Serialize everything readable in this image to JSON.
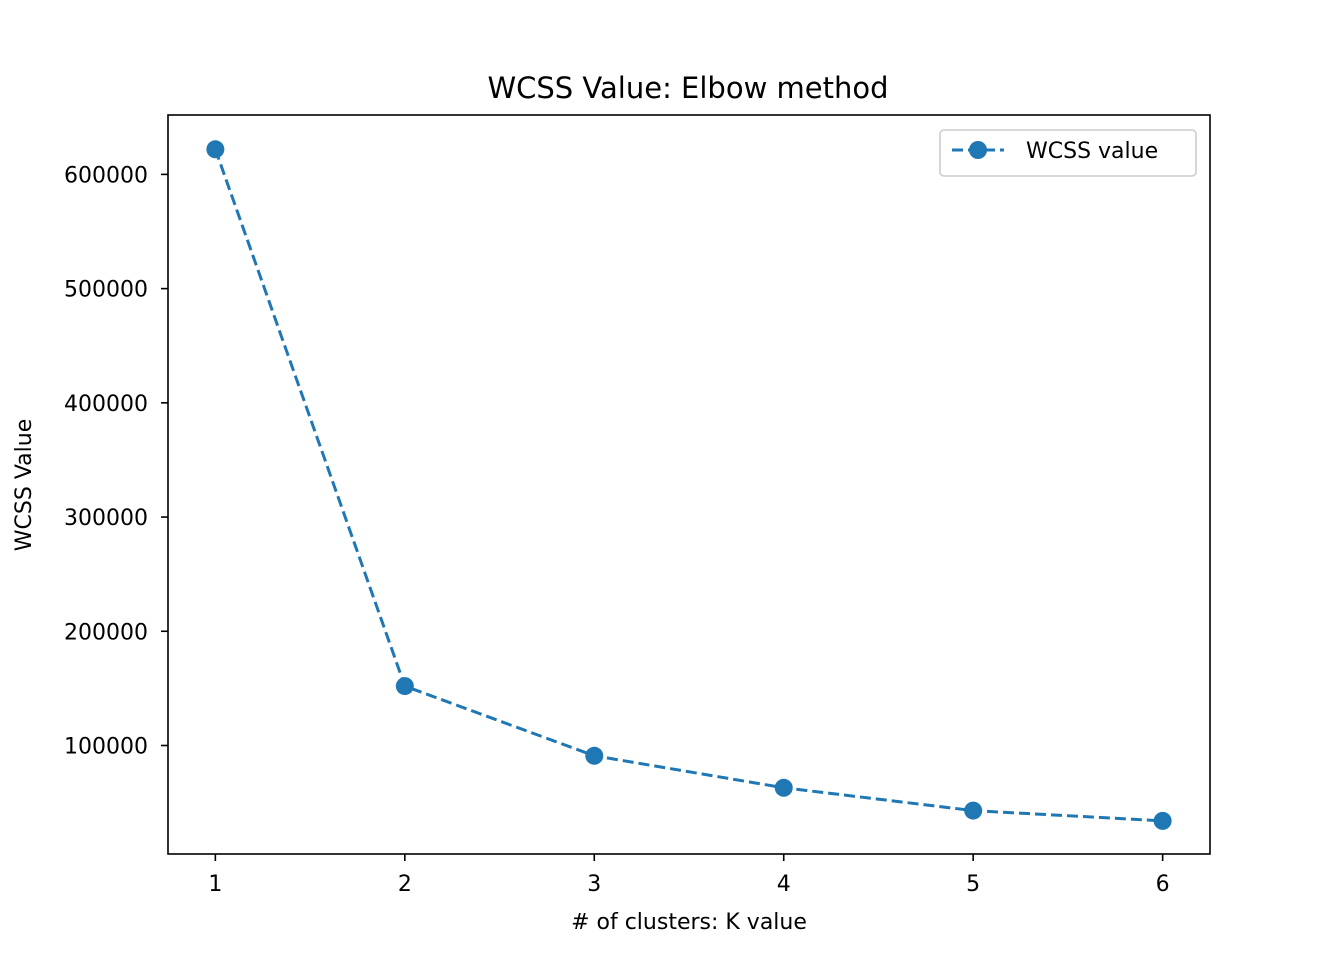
{
  "chart_data": {
    "type": "line",
    "title": "WCSS Value: Elbow method",
    "xlabel": "# of clusters: K value",
    "ylabel": "WCSS Value",
    "x": [
      1,
      2,
      3,
      4,
      5,
      6
    ],
    "xticks": [
      "1",
      "2",
      "3",
      "4",
      "5",
      "6"
    ],
    "xlim": [
      0.75,
      6.25
    ],
    "yticks": [
      100000,
      200000,
      300000,
      400000,
      500000,
      600000
    ],
    "ylim": [
      5000,
      652000
    ],
    "grid": false,
    "legend_position": "top-right",
    "series": [
      {
        "name": "WCSS value",
        "values": [
          622000,
          152000,
          91000,
          63000,
          43000,
          34000
        ],
        "color": "#1f77b4",
        "line_style": "dashed",
        "marker": "circle"
      }
    ]
  }
}
